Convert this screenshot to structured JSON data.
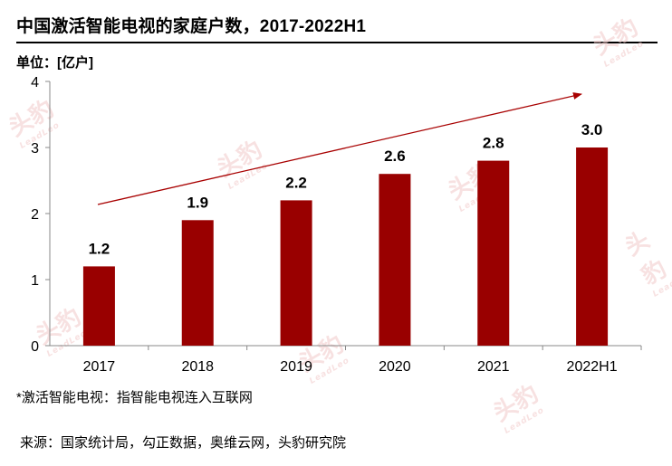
{
  "header": {
    "title": "中国激活智能电视的家庭户数，2017-2022H1",
    "unit": "单位：[亿户]"
  },
  "footer": {
    "note": "*激活智能电视：指智能电视连入互联网",
    "source": "来源：国家统计局，勾正数据，奥维云网，头豹研究院"
  },
  "watermark": {
    "text": "头豹",
    "subtext": "LeadLeo"
  },
  "colors": {
    "bar": "#990000",
    "trend_arrow": "#a80000",
    "axis": "#888888"
  },
  "chart_data": {
    "type": "bar",
    "title": "中国激活智能电视的家庭户数，2017-2022H1",
    "categories": [
      "2017",
      "2018",
      "2019",
      "2020",
      "2021",
      "2022H1"
    ],
    "values": [
      1.2,
      1.9,
      2.2,
      2.6,
      2.8,
      3.0
    ],
    "data_labels": [
      "1.2",
      "1.9",
      "2.2",
      "2.6",
      "2.8",
      "3.0"
    ],
    "yticks": [
      "0",
      "1",
      "2",
      "3",
      "4"
    ],
    "ylim": [
      0,
      4
    ],
    "xlabel": "",
    "ylabel": "",
    "grid": false,
    "legend": "none",
    "annotation": "upward trend arrow"
  }
}
